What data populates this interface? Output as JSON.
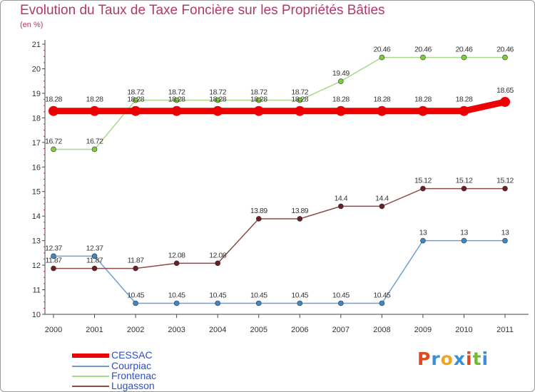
{
  "title": "Evolution du Taux de Taxe Foncière sur les Propriétés Bâties",
  "subtitle": "(en %)",
  "logo": {
    "letters": [
      "P",
      "r",
      "o",
      "x",
      "i",
      "t",
      "i"
    ],
    "colors": [
      "#e0481f",
      "#3a8fd8",
      "#f2a51c",
      "#3a8fd8",
      "#e0481f",
      "#6cbf2a",
      "#3a8fd8"
    ]
  },
  "chart_data": {
    "type": "line",
    "title": "Evolution du Taux de Taxe Foncière sur les Propriétés Bâties",
    "ylabel": "(en %)",
    "xlabel": "",
    "x": [
      "2000",
      "2001",
      "2002",
      "2003",
      "2004",
      "2005",
      "2006",
      "2007",
      "2008",
      "2009",
      "2010",
      "2011"
    ],
    "ylim": [
      10,
      21
    ],
    "yticks": [
      "10",
      "11",
      "12",
      "13",
      "14",
      "15",
      "16",
      "17",
      "18",
      "19",
      "20",
      "21"
    ],
    "grid": false,
    "series": [
      {
        "name": "CESSAC",
        "color": "#ee0000",
        "emphasis": true,
        "values": [
          18.28,
          18.28,
          18.28,
          18.28,
          18.28,
          18.28,
          18.28,
          18.28,
          18.28,
          18.28,
          18.28,
          18.65
        ],
        "labels": [
          "18.28",
          "18.28",
          "18.28",
          "18.28",
          "18.28",
          "18.28",
          "18.28",
          "18.28",
          "18.28",
          "18.28",
          "18.28",
          "18.65"
        ]
      },
      {
        "name": "Courpiac",
        "color": "#6e9fcf",
        "point": "#3f86c8",
        "values": [
          12.37,
          12.37,
          10.45,
          10.45,
          10.45,
          10.45,
          10.45,
          10.45,
          10.45,
          13,
          13,
          13
        ],
        "labels": [
          "12.37",
          "12.37",
          "10.45",
          "10.45",
          "10.45",
          "10.45",
          "10.45",
          "10.45",
          "10.45",
          "13",
          "13",
          "13"
        ]
      },
      {
        "name": "Frontenac",
        "color": "#a8d88a",
        "point": "#7dcf3a",
        "values": [
          16.72,
          16.72,
          18.72,
          18.72,
          18.72,
          18.72,
          18.72,
          19.49,
          20.46,
          20.46,
          20.46,
          20.46
        ],
        "labels": [
          "16.72",
          "16.72",
          "18.72",
          "18.72",
          "18.72",
          "18.72",
          "18.72",
          "19.49",
          "20.46",
          "20.46",
          "20.46",
          "20.46"
        ]
      },
      {
        "name": "Lugasson",
        "color": "#8c4a4a",
        "point": "#6b1f22",
        "values": [
          11.87,
          11.87,
          11.87,
          12.08,
          12.08,
          13.89,
          13.89,
          14.4,
          14.4,
          15.12,
          15.12,
          15.12
        ],
        "labels": [
          "11.87",
          "11.87",
          "11.87",
          "12.08",
          "12.08",
          "13.89",
          "13.89",
          "14.4",
          "14.4",
          "15.12",
          "15.12",
          "15.12"
        ]
      }
    ]
  }
}
